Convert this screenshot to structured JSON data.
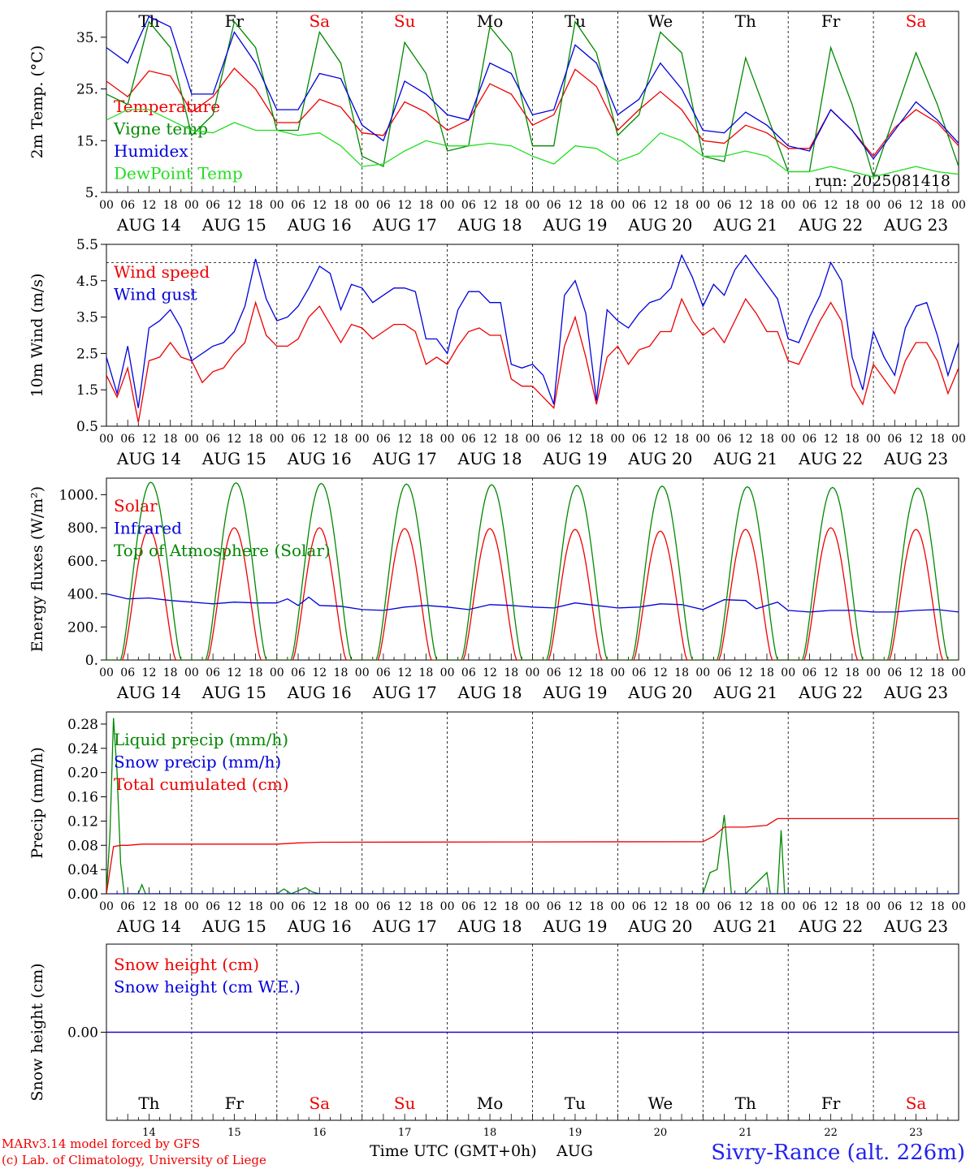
{
  "days": [
    {
      "abbr": "Th",
      "date": "AUG 14",
      "num": "14",
      "weekend": false
    },
    {
      "abbr": "Fr",
      "date": "AUG 15",
      "num": "15",
      "weekend": false
    },
    {
      "abbr": "Sa",
      "date": "AUG 16",
      "num": "16",
      "weekend": true
    },
    {
      "abbr": "Su",
      "date": "AUG 17",
      "num": "17",
      "weekend": true
    },
    {
      "abbr": "Mo",
      "date": "AUG 18",
      "num": "18",
      "weekend": false
    },
    {
      "abbr": "Tu",
      "date": "AUG 19",
      "num": "19",
      "weekend": false
    },
    {
      "abbr": "We",
      "date": "AUG 20",
      "num": "20",
      "weekend": false
    },
    {
      "abbr": "Th",
      "date": "AUG 21",
      "num": "21",
      "weekend": false
    },
    {
      "abbr": "Fr",
      "date": "AUG 22",
      "num": "22",
      "weekend": false
    },
    {
      "abbr": "Sa",
      "date": "AUG 23",
      "num": "23",
      "weekend": true
    }
  ],
  "hour_ticks": [
    "00",
    "06",
    "12",
    "18"
  ],
  "colors": {
    "red": "#ee0000",
    "green": "#008800",
    "blue": "#0000dd",
    "lime": "#22dd22",
    "weekend": "#ee0000"
  },
  "footer": {
    "model": "MARv3.14 model forced by GFS",
    "copyright": "(c) Lab. of Climatology, University of Liege",
    "axis_title": "Time UTC (GMT+0h)",
    "month": "AUG",
    "station": "Sivry-Rance (alt. 226m)"
  },
  "chart_data": [
    {
      "type": "line",
      "ylabel": "2m Temp. (°C)",
      "ylim": [
        5,
        40
      ],
      "yticks": [
        5,
        15,
        25,
        35
      ],
      "ytick_labels": [
        "5.",
        "15.",
        "25.",
        "35."
      ],
      "run_label": "run: 2025081418",
      "series": [
        {
          "name": "Temperature",
          "color": "red",
          "x": [
            0,
            6,
            12,
            18,
            24,
            30,
            36,
            42,
            48,
            54,
            60,
            66,
            72,
            78,
            84,
            90,
            96,
            102,
            108,
            114,
            120,
            126,
            132,
            138,
            144,
            150,
            156,
            162,
            168,
            174,
            180,
            186,
            192,
            198,
            204,
            210,
            216,
            222,
            228,
            234,
            240
          ],
          "y": [
            26.5,
            23.5,
            28.5,
            27.5,
            20.5,
            23.5,
            29.0,
            25.0,
            18.5,
            18.5,
            23.0,
            21.5,
            16.5,
            16.0,
            22.5,
            20.5,
            17.0,
            19.0,
            26.0,
            24.0,
            18.0,
            20.0,
            28.8,
            25.5,
            17.0,
            21.0,
            24.5,
            21.0,
            15.0,
            14.5,
            18.0,
            16.5,
            13.5,
            13.5,
            21.0,
            17.0,
            12.0,
            17.5,
            21.0,
            18.5,
            14.0
          ]
        },
        {
          "name": "Vigne temp",
          "color": "green",
          "x": [
            0,
            6,
            12,
            18,
            24,
            30,
            36,
            42,
            48,
            54,
            60,
            66,
            72,
            78,
            84,
            90,
            96,
            102,
            108,
            114,
            120,
            126,
            132,
            138,
            144,
            150,
            156,
            162,
            168,
            174,
            180,
            186,
            192,
            198,
            204,
            210,
            216,
            222,
            228,
            234,
            240
          ],
          "y": [
            24,
            22,
            38,
            33,
            16,
            20,
            38,
            33,
            17,
            17,
            36,
            30,
            12,
            10,
            34,
            28,
            13,
            14,
            37,
            32,
            14,
            14,
            38,
            32,
            16,
            20,
            36,
            32,
            12,
            11,
            31,
            20,
            9,
            9,
            33,
            22,
            8,
            20,
            32,
            22,
            10
          ]
        },
        {
          "name": "Humidex",
          "color": "blue",
          "x": [
            0,
            6,
            12,
            18,
            24,
            30,
            36,
            42,
            48,
            54,
            60,
            66,
            72,
            78,
            84,
            90,
            96,
            102,
            108,
            114,
            120,
            126,
            132,
            138,
            144,
            150,
            156,
            162,
            168,
            174,
            180,
            186,
            192,
            198,
            204,
            210,
            216,
            222,
            228,
            234,
            240
          ],
          "y": [
            33,
            30,
            39,
            37,
            24,
            24,
            36,
            30,
            21,
            21,
            28,
            27,
            18,
            15,
            26.5,
            24,
            20,
            19,
            30,
            28,
            20,
            21,
            33.5,
            30,
            20,
            23,
            30,
            25,
            17,
            16.5,
            20.5,
            18,
            14,
            13,
            21,
            17,
            11.5,
            17,
            22.5,
            19,
            14.5
          ]
        },
        {
          "name": "DewPoint Temp",
          "color": "lime",
          "x": [
            0,
            6,
            12,
            18,
            24,
            30,
            36,
            42,
            48,
            54,
            60,
            66,
            72,
            78,
            84,
            90,
            96,
            102,
            108,
            114,
            120,
            126,
            132,
            138,
            144,
            150,
            156,
            162,
            168,
            174,
            180,
            186,
            192,
            198,
            204,
            210,
            216,
            222,
            228,
            234,
            240
          ],
          "y": [
            19,
            21,
            21,
            19,
            17,
            16.5,
            18.5,
            17,
            17,
            16,
            16.5,
            14,
            10,
            10.5,
            13,
            15,
            14,
            14,
            14.5,
            14,
            12,
            10.5,
            14,
            13.5,
            11,
            12.5,
            16.5,
            15,
            12,
            12,
            13,
            12,
            9,
            9,
            10,
            9,
            8,
            9,
            10,
            9,
            8.5
          ]
        }
      ]
    },
    {
      "type": "line",
      "ylabel": "10m Wind (m/s)",
      "ylim": [
        0.5,
        5.5
      ],
      "yticks": [
        0.5,
        1.5,
        2.5,
        3.5,
        4.5,
        5.5
      ],
      "ytick_labels": [
        "0.5",
        "1.5",
        "2.5",
        "3.5",
        "4.5",
        "5.5"
      ],
      "ref_line": 5.0,
      "series": [
        {
          "name": "Wind speed",
          "color": "red",
          "x": [
            0,
            3,
            6,
            9,
            12,
            15,
            18,
            21,
            24,
            27,
            30,
            33,
            36,
            39,
            42,
            45,
            48,
            51,
            54,
            57,
            60,
            63,
            66,
            69,
            72,
            75,
            78,
            81,
            84,
            87,
            90,
            93,
            96,
            99,
            102,
            105,
            108,
            111,
            114,
            117,
            120,
            123,
            126,
            129,
            132,
            135,
            138,
            141,
            144,
            147,
            150,
            153,
            156,
            159,
            162,
            165,
            168,
            171,
            174,
            177,
            180,
            183,
            186,
            189,
            192,
            195,
            198,
            201,
            204,
            207,
            210,
            213,
            216,
            219,
            222,
            225,
            228,
            231,
            234,
            237,
            240
          ],
          "y": [
            1.9,
            1.3,
            2.1,
            0.6,
            2.3,
            2.4,
            2.8,
            2.4,
            2.3,
            1.7,
            2.0,
            2.1,
            2.5,
            2.8,
            3.9,
            3.0,
            2.7,
            2.7,
            2.9,
            3.5,
            3.8,
            3.3,
            2.8,
            3.3,
            3.2,
            2.9,
            3.1,
            3.3,
            3.3,
            3.1,
            2.2,
            2.4,
            2.2,
            2.7,
            3.1,
            3.2,
            3.0,
            3.0,
            1.8,
            1.6,
            1.6,
            1.3,
            1.0,
            2.7,
            3.5,
            2.4,
            1.1,
            2.4,
            2.7,
            2.2,
            2.6,
            2.7,
            3.1,
            3.1,
            4.0,
            3.4,
            3.0,
            3.2,
            2.8,
            3.4,
            4.0,
            3.6,
            3.1,
            3.1,
            2.3,
            2.2,
            2.8,
            3.4,
            3.9,
            3.4,
            1.6,
            1.1,
            2.2,
            1.8,
            1.4,
            2.3,
            2.8,
            2.8,
            2.3,
            1.4,
            2.1
          ]
        },
        {
          "name": "Wind gust",
          "color": "blue",
          "x": [
            0,
            3,
            6,
            9,
            12,
            15,
            18,
            21,
            24,
            27,
            30,
            33,
            36,
            39,
            42,
            45,
            48,
            51,
            54,
            57,
            60,
            63,
            66,
            69,
            72,
            75,
            78,
            81,
            84,
            87,
            90,
            93,
            96,
            99,
            102,
            105,
            108,
            111,
            114,
            117,
            120,
            123,
            126,
            129,
            132,
            135,
            138,
            141,
            144,
            147,
            150,
            153,
            156,
            159,
            162,
            165,
            168,
            171,
            174,
            177,
            180,
            183,
            186,
            189,
            192,
            195,
            198,
            201,
            204,
            207,
            210,
            213,
            216,
            219,
            222,
            225,
            228,
            231,
            234,
            237,
            240
          ],
          "y": [
            2.4,
            1.4,
            2.7,
            1.0,
            3.2,
            3.4,
            3.7,
            3.2,
            2.3,
            2.5,
            2.7,
            2.8,
            3.1,
            3.8,
            5.1,
            4.0,
            3.4,
            3.5,
            3.8,
            4.3,
            4.9,
            4.7,
            3.7,
            4.4,
            4.3,
            3.9,
            4.1,
            4.3,
            4.3,
            4.2,
            2.9,
            2.9,
            2.5,
            3.7,
            4.2,
            4.2,
            3.9,
            3.9,
            2.2,
            2.1,
            2.2,
            1.9,
            1.1,
            4.1,
            4.5,
            3.6,
            1.2,
            3.7,
            3.4,
            3.2,
            3.6,
            3.9,
            4.0,
            4.3,
            5.2,
            4.6,
            3.8,
            4.4,
            4.1,
            4.8,
            5.2,
            4.8,
            4.4,
            4.0,
            2.9,
            2.8,
            3.5,
            4.1,
            5.0,
            4.5,
            2.4,
            1.5,
            3.1,
            2.4,
            1.9,
            3.2,
            3.8,
            3.9,
            3.0,
            1.9,
            2.8
          ]
        }
      ]
    },
    {
      "type": "line",
      "ylabel": "Energy fluxes (W/m²)",
      "ylim": [
        0,
        1100
      ],
      "yticks": [
        0,
        200,
        400,
        600,
        800,
        1000
      ],
      "ytick_labels": [
        "0.",
        "200.",
        "400.",
        "600.",
        "800.",
        "1000."
      ],
      "series": [
        {
          "name": "Solar",
          "color": "red",
          "peaks": [
            790,
            800,
            800,
            795,
            795,
            790,
            780,
            790,
            800,
            790
          ],
          "peak_hour": 12,
          "half_width": 7.5
        },
        {
          "name": "Infrared",
          "color": "blue",
          "x": [
            0,
            6,
            12,
            18,
            24,
            30,
            36,
            42,
            48,
            51,
            54,
            57,
            60,
            66,
            72,
            78,
            84,
            90,
            96,
            102,
            108,
            114,
            120,
            126,
            132,
            138,
            144,
            150,
            156,
            162,
            168,
            174,
            180,
            183,
            186,
            189,
            192,
            198,
            204,
            210,
            216,
            222,
            228,
            234,
            240
          ],
          "y": [
            400,
            370,
            375,
            360,
            350,
            340,
            350,
            345,
            345,
            370,
            330,
            380,
            330,
            325,
            305,
            300,
            320,
            330,
            320,
            305,
            335,
            330,
            320,
            315,
            345,
            330,
            315,
            320,
            340,
            335,
            305,
            365,
            360,
            310,
            330,
            350,
            300,
            290,
            300,
            300,
            290,
            290,
            300,
            305,
            290
          ]
        },
        {
          "name": "Top of Atmosphere (Solar)",
          "color": "green",
          "peaks": [
            1075,
            1072,
            1068,
            1064,
            1060,
            1056,
            1052,
            1048,
            1044,
            1040
          ],
          "peak_hour": 12.5,
          "half_width": 8.5
        }
      ]
    },
    {
      "type": "line",
      "ylabel": "Precip (mm/h)",
      "ylim": [
        0,
        0.3
      ],
      "yticks": [
        0,
        0.04,
        0.08,
        0.12,
        0.16,
        0.2,
        0.24,
        0.28
      ],
      "ytick_labels": [
        "0.00",
        "0.04",
        "0.08",
        "0.12",
        "0.16",
        "0.20",
        "0.24",
        "0.28"
      ],
      "series": [
        {
          "name": "Liquid precip (mm/h)",
          "color": "green",
          "x": [
            0,
            1,
            2,
            3,
            4,
            5,
            6,
            9,
            10,
            11,
            12,
            48,
            50,
            52,
            54,
            56,
            58,
            60,
            168,
            170,
            172,
            174,
            176,
            178,
            180,
            186,
            187,
            188,
            189,
            190,
            191,
            192,
            193,
            240
          ],
          "y": [
            0,
            0.1,
            0.29,
            0.2,
            0.05,
            0,
            0,
            0,
            0.015,
            0,
            0,
            0,
            0.008,
            0,
            0.005,
            0.01,
            0.003,
            0,
            0,
            0.035,
            0.04,
            0.13,
            0,
            0,
            0,
            0.035,
            0,
            0,
            0,
            0.105,
            0,
            0,
            0,
            0
          ]
        },
        {
          "name": "Snow precip (mm/h)",
          "color": "blue",
          "x": [
            0,
            240
          ],
          "y": [
            0,
            0
          ]
        },
        {
          "name": "Total cumulated (cm)",
          "color": "red",
          "x": [
            0,
            2,
            4,
            6,
            10,
            48,
            54,
            60,
            168,
            171,
            174,
            180,
            186,
            189,
            192,
            240
          ],
          "y": [
            0,
            0.078,
            0.08,
            0.08,
            0.082,
            0.082,
            0.084,
            0.085,
            0.086,
            0.095,
            0.11,
            0.11,
            0.113,
            0.124,
            0.124,
            0.124
          ]
        }
      ]
    },
    {
      "type": "line",
      "ylabel": "Snow height (cm)",
      "ylim": [
        -1,
        1
      ],
      "yticks": [
        0
      ],
      "ytick_labels": [
        "0.00"
      ],
      "series": [
        {
          "name": "Snow height (cm)",
          "color": "red",
          "x": [
            0,
            240
          ],
          "y": [
            0,
            0
          ]
        },
        {
          "name": "Snow height (cm W.E.)",
          "color": "blue",
          "x": [
            0,
            240
          ],
          "y": [
            0,
            0
          ]
        }
      ]
    }
  ]
}
